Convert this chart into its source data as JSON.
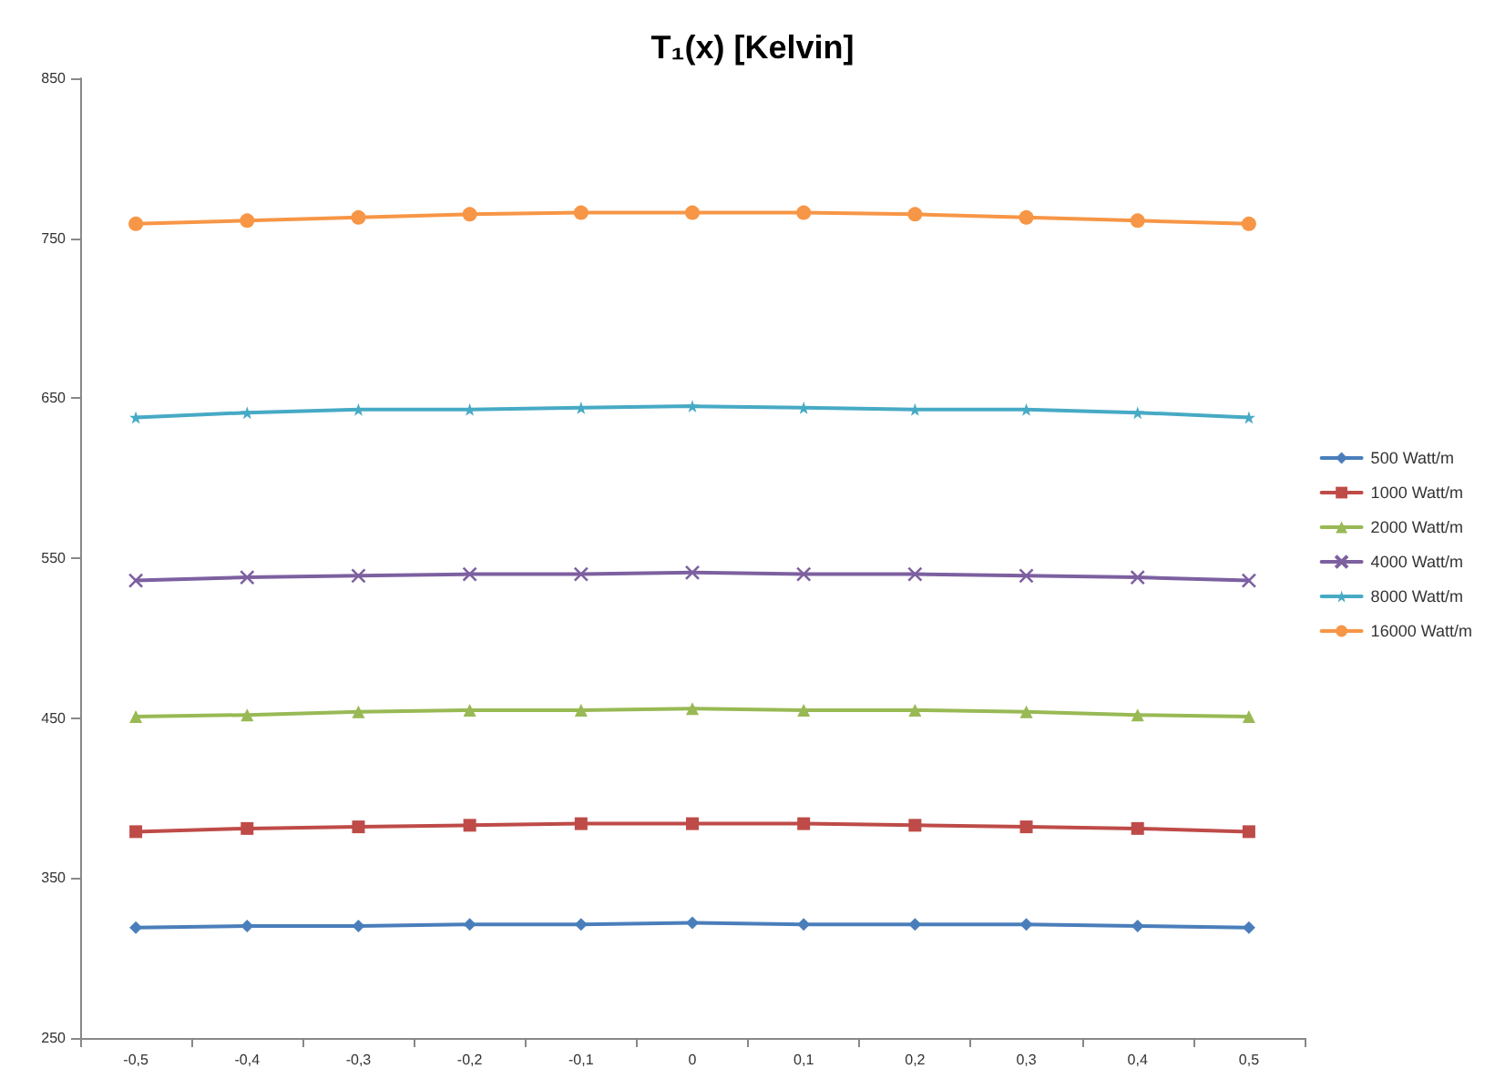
{
  "chart_data": {
    "type": "line",
    "title": "T₁(x) [Kelvin]",
    "categories": [
      "-0,5",
      "-0,4",
      "-0,3",
      "-0,2",
      "-0,1",
      "0",
      "0,1",
      "0,2",
      "0,3",
      "0,4",
      "0,5"
    ],
    "ylim": [
      250,
      850
    ],
    "yticks": [
      250,
      350,
      450,
      550,
      650,
      750,
      850
    ],
    "grid": false,
    "legend": "right",
    "line_style": "solid",
    "series": [
      {
        "name": "500 Watt/m",
        "color": "#4a7ebb",
        "marker": "diamond",
        "values": [
          319,
          320,
          320,
          321,
          321,
          322,
          321,
          321,
          321,
          320,
          319
        ]
      },
      {
        "name": "1000 Watt/m",
        "color": "#be4b48",
        "marker": "square",
        "values": [
          379,
          381,
          382,
          383,
          384,
          384,
          384,
          383,
          382,
          381,
          379
        ]
      },
      {
        "name": "2000 Watt/m",
        "color": "#98b954",
        "marker": "triangle",
        "values": [
          451,
          452,
          454,
          455,
          455,
          456,
          455,
          455,
          454,
          452,
          451
        ]
      },
      {
        "name": "4000 Watt/m",
        "color": "#7d60a0",
        "marker": "cross",
        "values": [
          536,
          538,
          539,
          540,
          540,
          541,
          540,
          540,
          539,
          538,
          536
        ]
      },
      {
        "name": "8000 Watt/m",
        "color": "#46aac5",
        "marker": "star",
        "values": [
          638,
          641,
          643,
          643,
          644,
          645,
          644,
          643,
          643,
          641,
          638
        ]
      },
      {
        "name": "16000 Watt/m",
        "color": "#f79646",
        "marker": "circle",
        "values": [
          759,
          761,
          763,
          765,
          766,
          766,
          766,
          765,
          763,
          761,
          759
        ]
      }
    ]
  }
}
